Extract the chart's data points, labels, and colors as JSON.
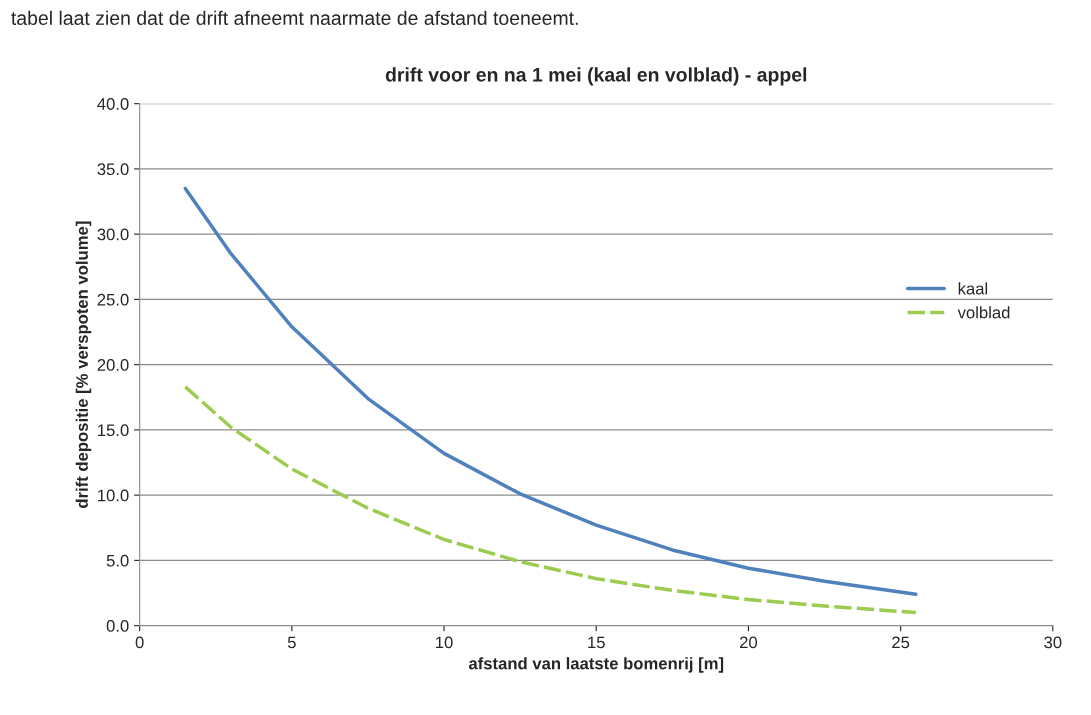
{
  "chart_data": {
    "type": "line",
    "title": "drift voor en na 1 mei (kaal en volblad) - appel",
    "xlabel": "afstand van laatste bomenrij [m]",
    "ylabel": "drift depositie [% verspoten volume]",
    "annotations": [
      "tabel laat zien dat de drift afneemt naarmate de afstand toeneemt."
    ],
    "x": [
      1.5,
      3,
      5,
      7.5,
      10,
      12.5,
      15,
      17.5,
      20,
      22.5,
      25.5
    ],
    "series": [
      {
        "name": "kaal",
        "color": "#4f81bd",
        "line_style": "solid",
        "values": [
          33.5,
          28.5,
          22.9,
          17.4,
          13.2,
          10.1,
          7.7,
          5.8,
          4.4,
          3.4,
          2.4
        ]
      },
      {
        "name": "volblad",
        "color": "#9bcb4f",
        "line_style": "dashed",
        "values": [
          18.3,
          15.2,
          12.0,
          9.0,
          6.6,
          4.9,
          3.6,
          2.7,
          2.0,
          1.5,
          1.0
        ]
      }
    ],
    "xlim": [
      0,
      30
    ],
    "xticks": [
      0,
      5,
      10,
      15,
      20,
      25,
      30
    ],
    "ylim": [
      0,
      40
    ],
    "yticks": [
      {
        "value": 0,
        "label": "0.0"
      },
      {
        "value": 5,
        "label": "5.0"
      },
      {
        "value": 10,
        "label": "10.0"
      },
      {
        "value": 15,
        "label": "15.0"
      },
      {
        "value": 20,
        "label": "20.0"
      },
      {
        "value": 25,
        "label": "25.0"
      },
      {
        "value": 30,
        "label": "30.0"
      },
      {
        "value": 35,
        "label": "35.0"
      },
      {
        "value": 40,
        "label": "40.0"
      }
    ],
    "grid": "y",
    "legend": "right"
  }
}
